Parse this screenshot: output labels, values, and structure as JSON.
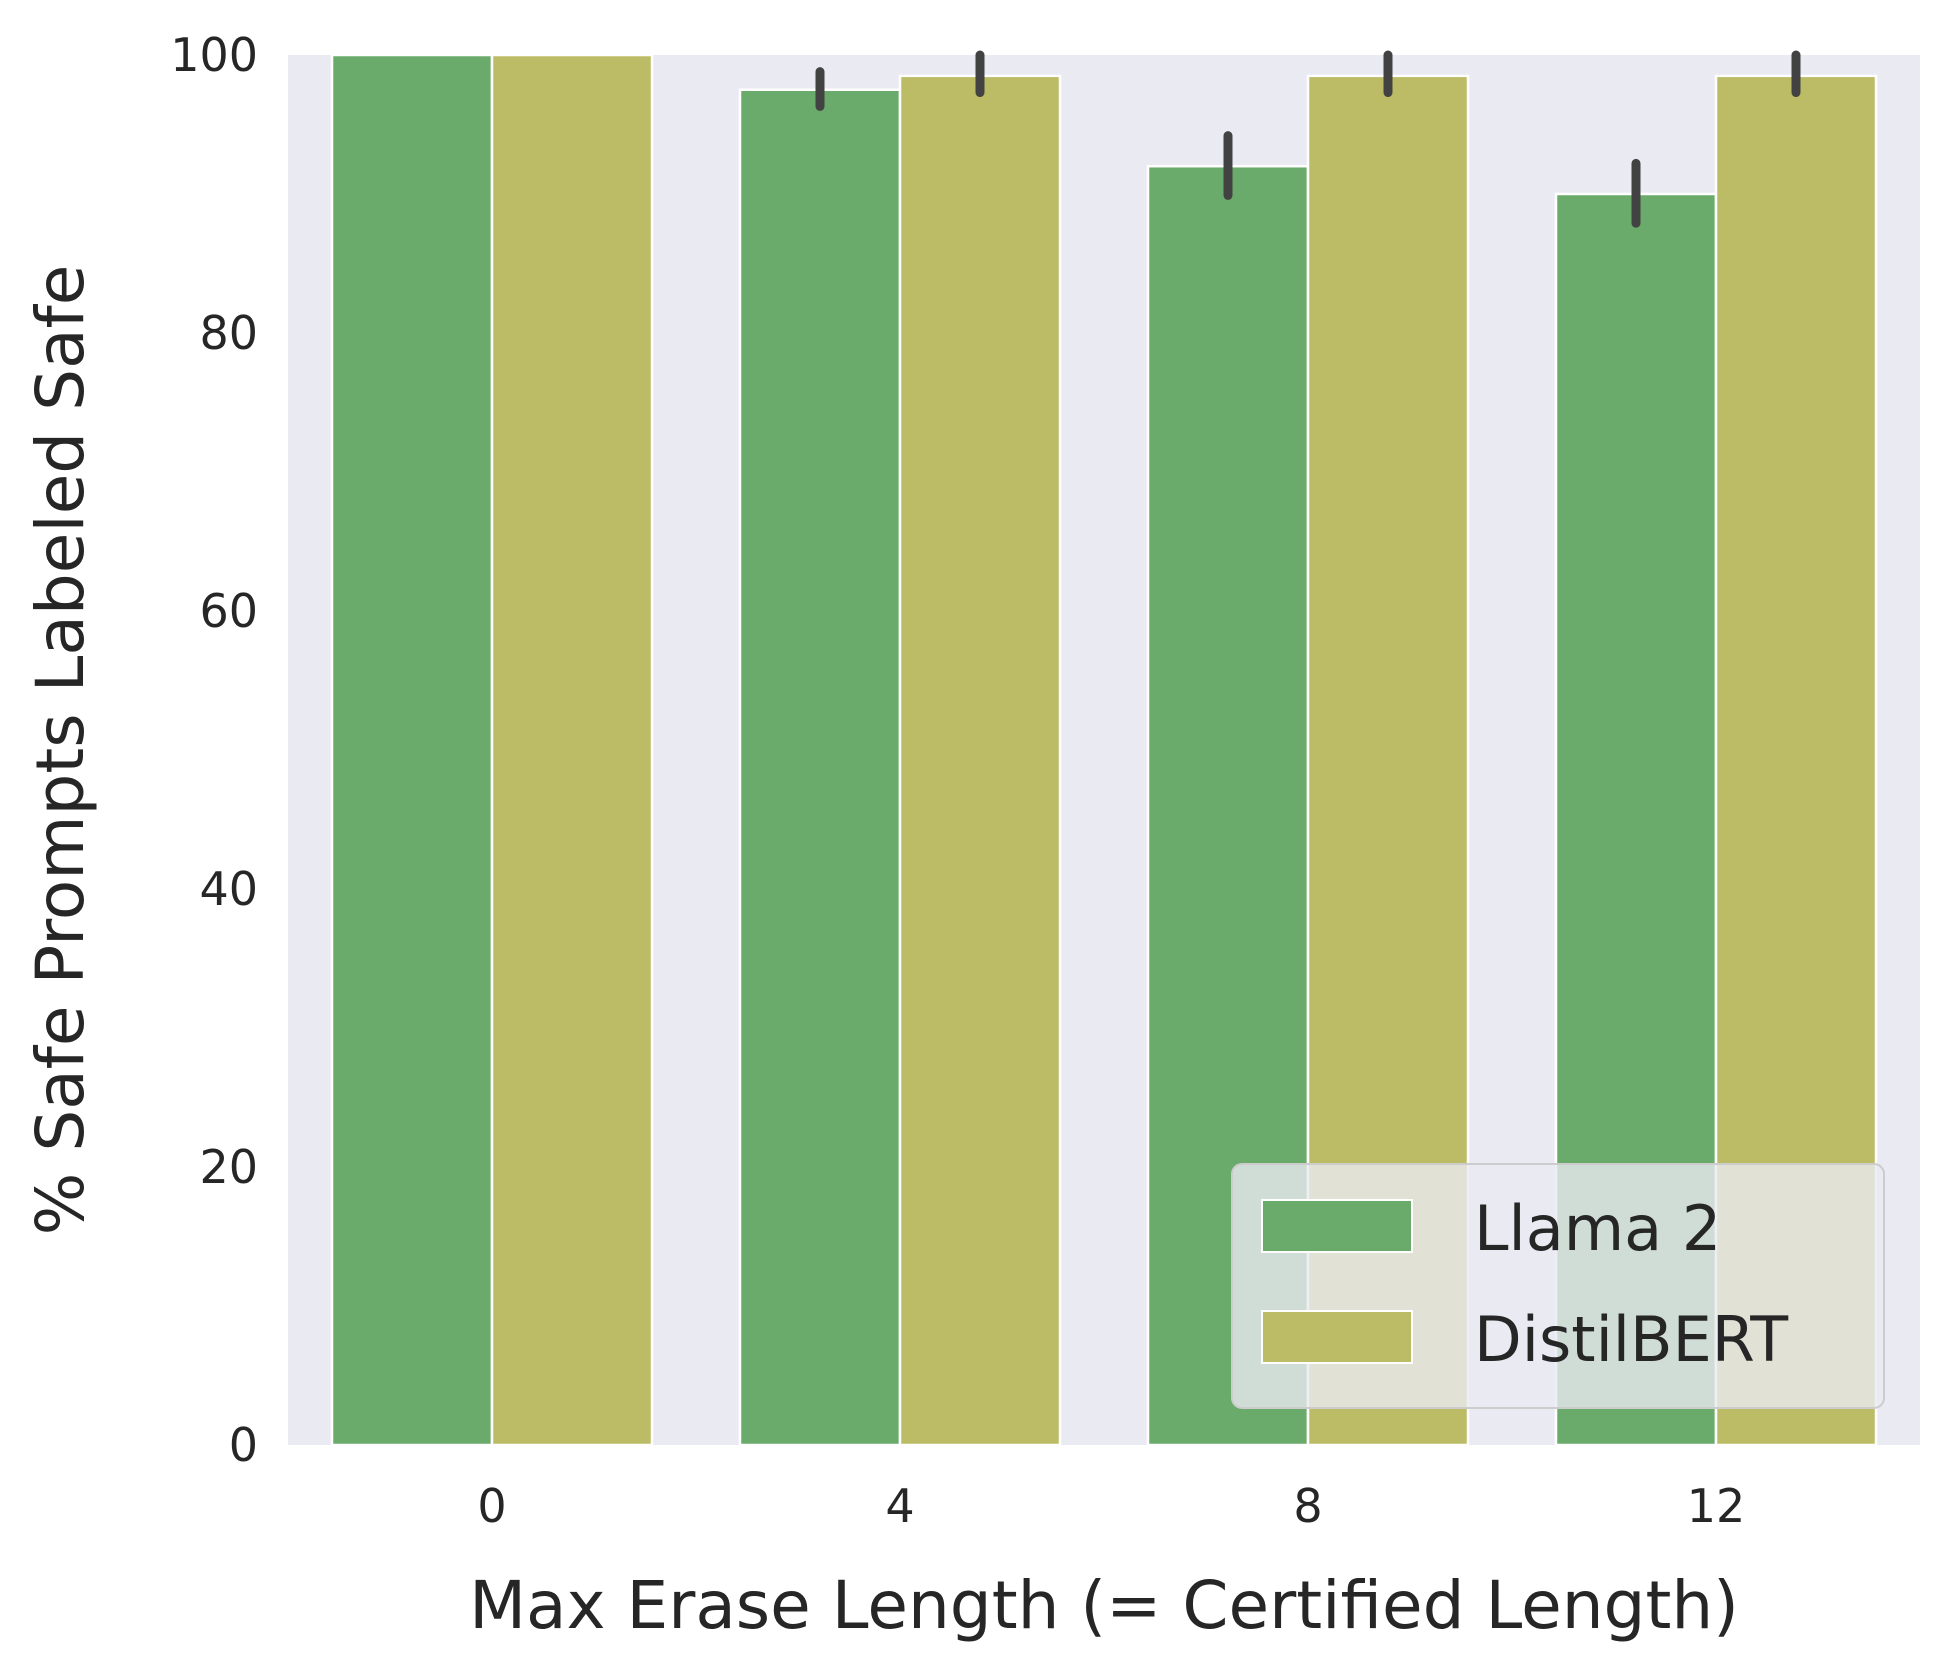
{
  "chart_data": {
    "type": "bar",
    "categories": [
      "0",
      "4",
      "8",
      "12"
    ],
    "series": [
      {
        "name": "Llama 2",
        "color": "#6aaa6a",
        "values": [
          100,
          97.5,
          92,
          90
        ],
        "err_low": [
          100,
          96.3,
          89.9,
          87.9
        ],
        "err_high": [
          100,
          98.8,
          94.2,
          92.2
        ]
      },
      {
        "name": "DistilBERT",
        "color": "#bcbc66",
        "values": [
          100,
          98.5,
          98.5,
          98.5
        ],
        "err_low": [
          100,
          97.3,
          97.3,
          97.3
        ],
        "err_high": [
          100,
          100,
          100,
          100
        ]
      }
    ],
    "xlabel": "Max Erase Length (= Certified Length)",
    "ylabel": "% Safe Prompts Labeled Safe",
    "ylim": [
      0,
      100
    ],
    "yticks": [
      "0",
      "20",
      "40",
      "60",
      "80",
      "100"
    ],
    "grid": false,
    "legend_position": "bottom-right",
    "plot_background": "#eaeaf2"
  }
}
